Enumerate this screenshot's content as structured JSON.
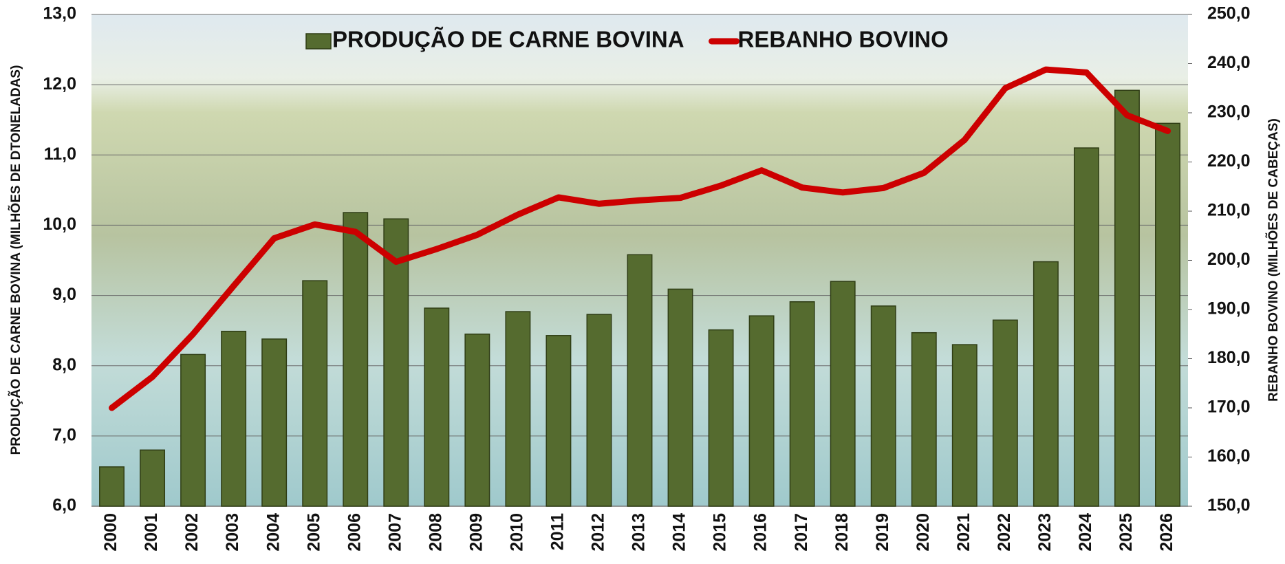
{
  "chart_data": {
    "type": "bar-line",
    "categories": [
      "2000",
      "2001",
      "2002",
      "2003",
      "2004",
      "2005",
      "2006",
      "2007",
      "2008",
      "2009",
      "2010",
      "2011",
      "2012",
      "2013",
      "2014",
      "2015",
      "2016",
      "2017",
      "2018",
      "2019",
      "2020",
      "2021",
      "2022",
      "2023",
      "2024",
      "2025",
      "2026"
    ],
    "series": [
      {
        "name": "PRODUÇÃO DE CARNE BOVINA",
        "type": "bar",
        "color": "#556b2f",
        "axis": "y",
        "values": [
          6.56,
          6.8,
          8.16,
          8.49,
          8.38,
          9.21,
          10.18,
          10.09,
          8.82,
          8.45,
          8.77,
          8.43,
          8.73,
          9.58,
          9.09,
          8.51,
          8.71,
          8.91,
          9.2,
          8.85,
          8.47,
          8.3,
          8.65,
          9.48,
          11.1,
          11.92,
          11.45
        ]
      },
      {
        "name": "REBANHO BOVINO",
        "type": "line",
        "color": "#cc0000",
        "axis": "y2",
        "values": [
          170,
          176.3,
          185,
          194.8,
          204.5,
          207.3,
          205.8,
          199.7,
          202.3,
          205.2,
          209.3,
          212.8,
          211.5,
          212.2,
          212.7,
          215.2,
          218.3,
          214.8,
          213.8,
          214.7,
          217.8,
          224.5,
          235,
          238.8,
          238.2,
          229.5,
          226.3
        ]
      }
    ],
    "ylabel": "PRODUÇÃO DE CARNE BOVINA (MILHÕES DE DTONELADAS)",
    "y2label": "REBANHO BOVINO (MILHÕES DE CABEÇAS)",
    "ylim": [
      6,
      13
    ],
    "yticks": [
      {
        "value": 6,
        "label": "6,0"
      },
      {
        "value": 7,
        "label": "7,0"
      },
      {
        "value": 8,
        "label": "8,0"
      },
      {
        "value": 9,
        "label": "9,0"
      },
      {
        "value": 10,
        "label": "10,0"
      },
      {
        "value": 11,
        "label": "11,0"
      },
      {
        "value": 12,
        "label": "12,0"
      },
      {
        "value": 13,
        "label": "13,0"
      }
    ],
    "y2lim": [
      150,
      250
    ],
    "y2ticks": [
      {
        "value": 150,
        "label": "150,0"
      },
      {
        "value": 160,
        "label": "160,0"
      },
      {
        "value": 170,
        "label": "170,0"
      },
      {
        "value": 180,
        "label": "180,0"
      },
      {
        "value": 190,
        "label": "190,0"
      },
      {
        "value": 200,
        "label": "200,0"
      },
      {
        "value": 210,
        "label": "210,0"
      },
      {
        "value": 220,
        "label": "220,0"
      },
      {
        "value": 230,
        "label": "230,0"
      },
      {
        "value": 240,
        "label": "240,0"
      },
      {
        "value": 250,
        "label": "250,0"
      }
    ],
    "grid": true,
    "legend": "top"
  }
}
